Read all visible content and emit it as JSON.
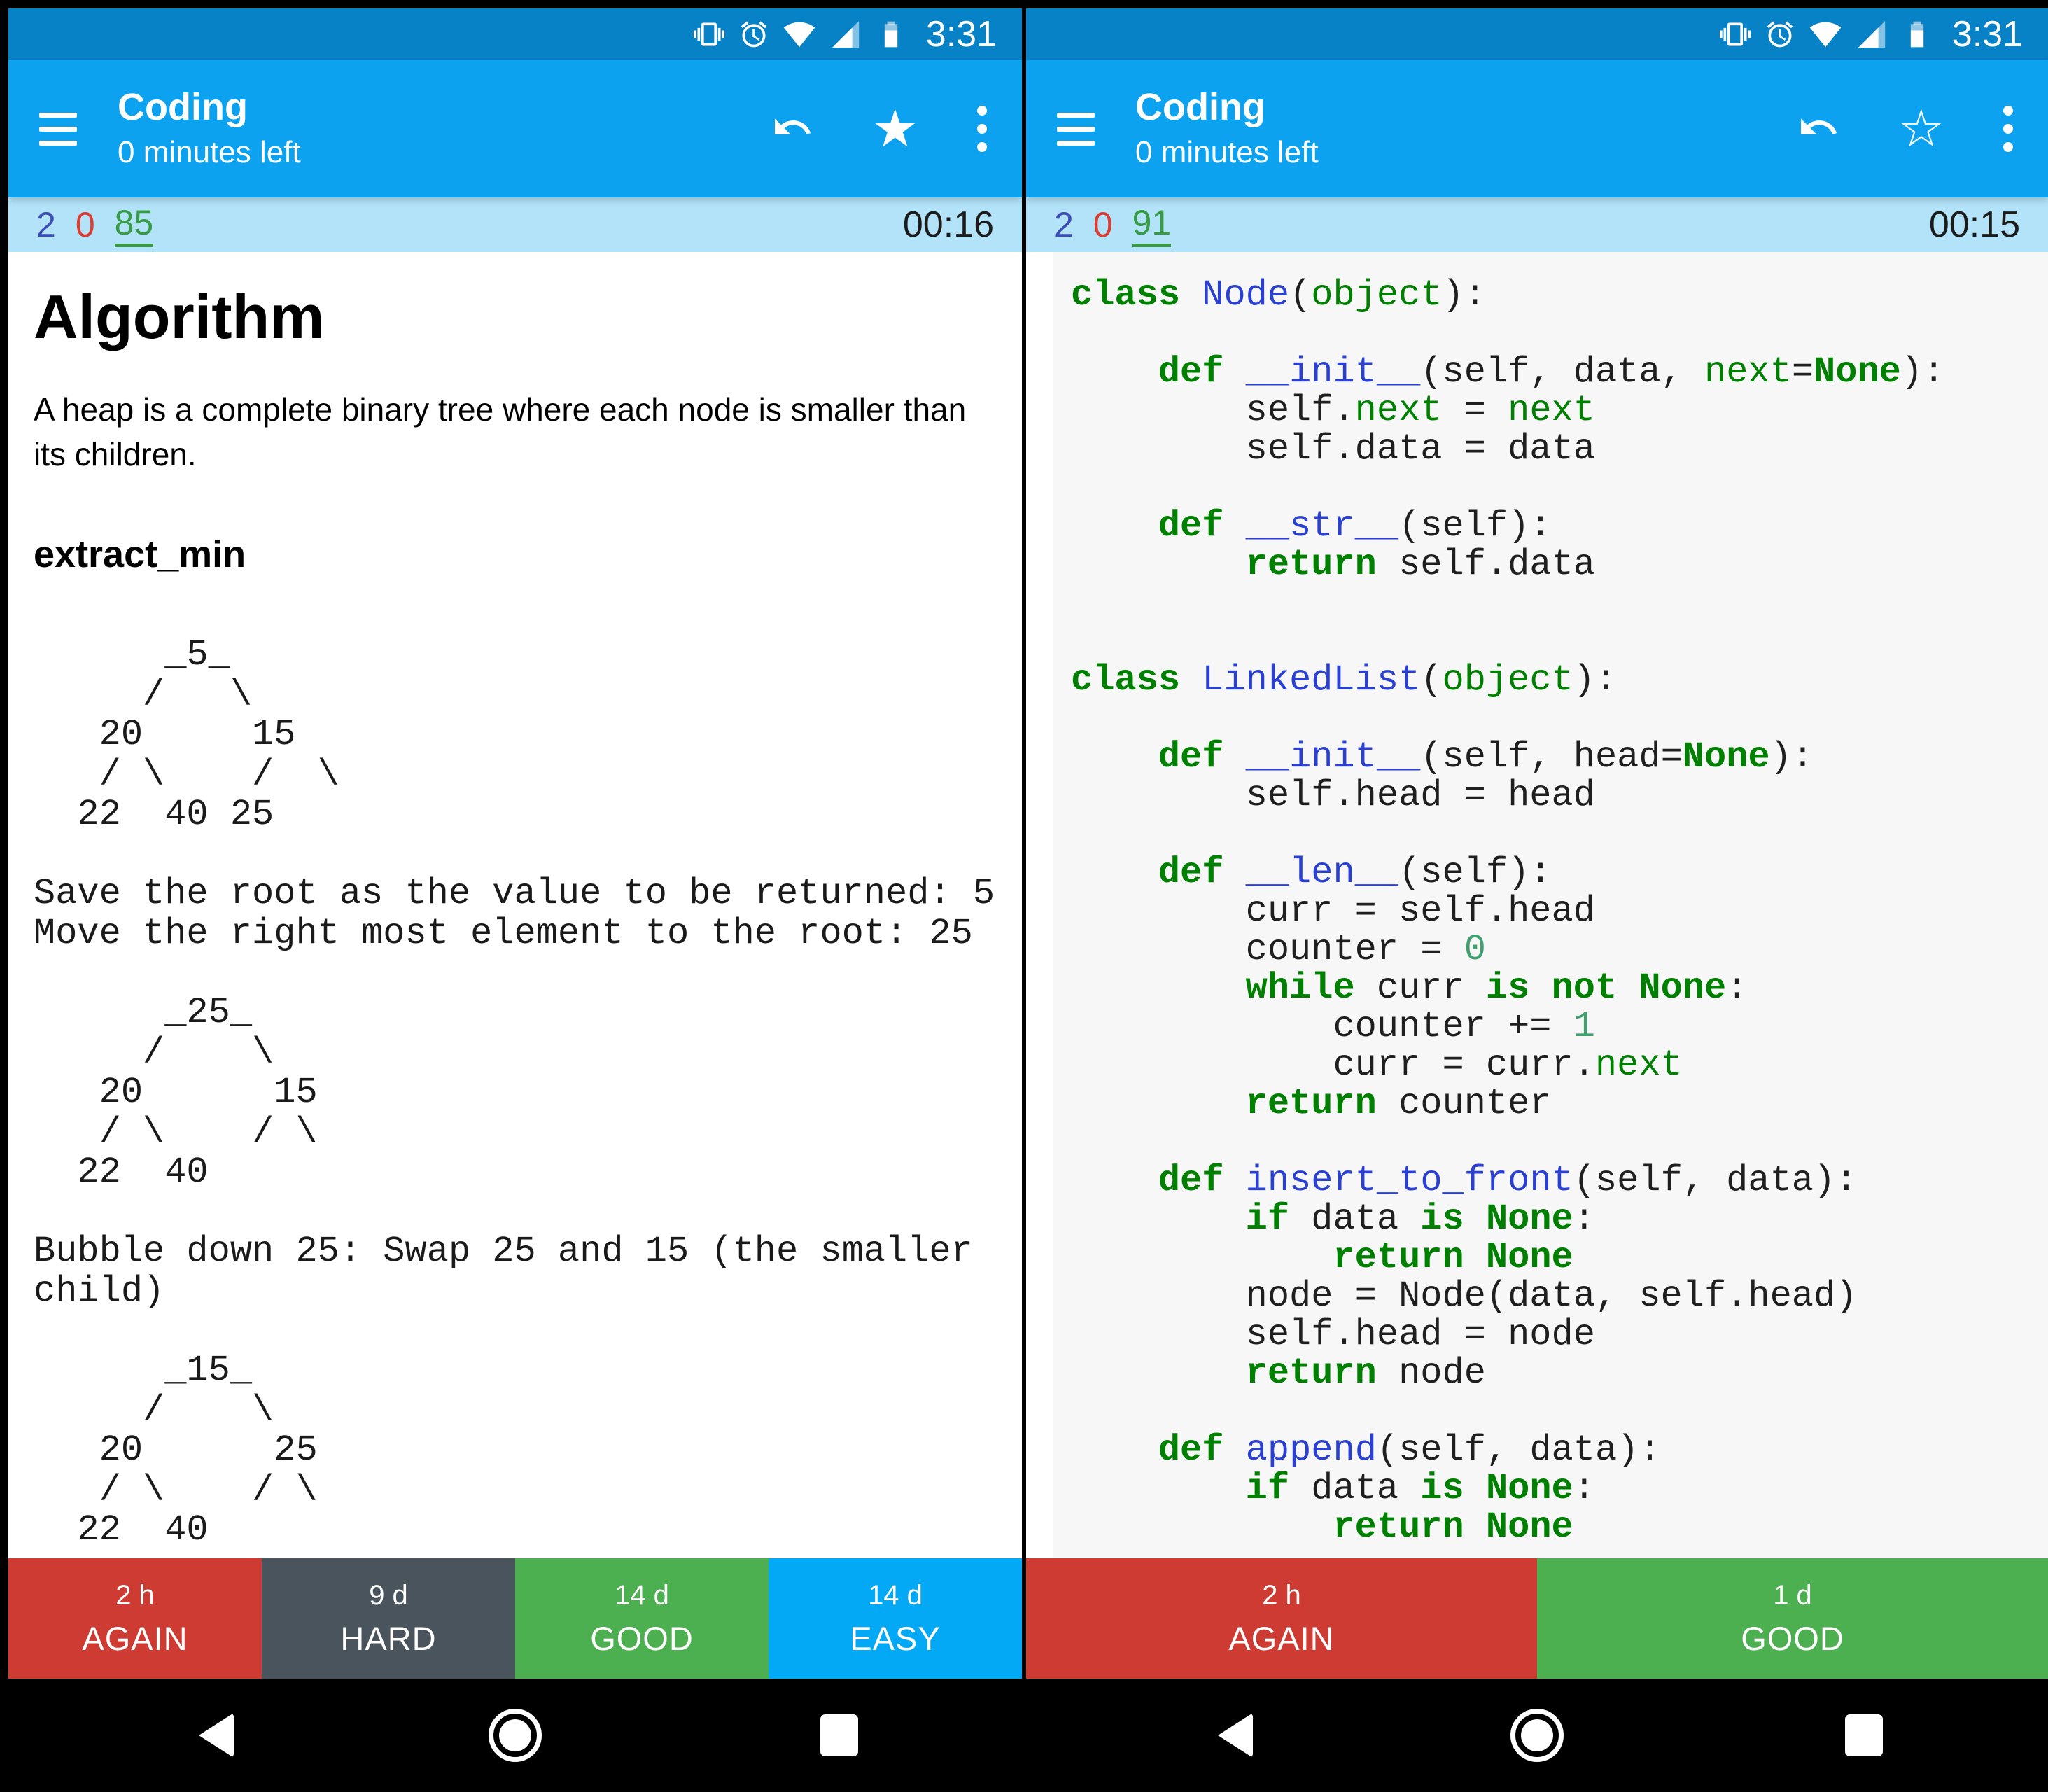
{
  "shared": {
    "status": {
      "time": "3:31",
      "icons": [
        "vibrate",
        "alarm",
        "wifi",
        "cell-signal",
        "battery"
      ]
    },
    "appbar": {
      "title": "Coding",
      "subtitle": "0 minutes left"
    },
    "colors": {
      "status_bar": "#0882c6",
      "app_bar": "#0da2ef",
      "counts_bar": "#b3e3f8",
      "again_red": "#cd3b32",
      "hard_gray": "#49545c",
      "good_green": "#4caf50",
      "easy_blue": "#03a9f4",
      "count_new": "#3c4eb5",
      "count_learn": "#dc3c31",
      "count_due": "#379a44",
      "code_keyword": "#008000",
      "code_name": "#2940d3",
      "code_builtin": "#008000",
      "code_number": "#40a070"
    }
  },
  "left": {
    "counts": {
      "new": "2",
      "learn": "0",
      "due": "85"
    },
    "timer": "00:16",
    "star_glyph": "★",
    "card": {
      "heading": "Algorithm",
      "paragraph": "A heap is a complete binary tree where each node is smaller than its children.",
      "subheading": "extract_min",
      "blocks": [
        {
          "name": "heap-tree-1",
          "lines": [
            "      _5_",
            "     /   \\",
            "   20     15",
            "   / \\    /  \\",
            "  22  40 25"
          ]
        },
        {
          "name": "step-note-1",
          "lines": [
            "Save the root as the value to be returned: 5",
            "Move the right most element to the root: 25"
          ]
        },
        {
          "name": "heap-tree-2",
          "lines": [
            "      _25_",
            "     /    \\",
            "   20      15",
            "   / \\    / \\",
            "  22  40"
          ]
        },
        {
          "name": "step-note-2",
          "lines": [
            "Bubble down 25: Swap 25 and 15 (the smaller",
            "child)"
          ]
        },
        {
          "name": "heap-tree-3",
          "lines": [
            "      _15_",
            "     /    \\",
            "   20      25",
            "   / \\    / \\",
            "  22  40"
          ]
        }
      ]
    },
    "buttons": [
      {
        "time": "2 h",
        "label": "AGAIN",
        "color": "#cd3b32"
      },
      {
        "time": "9 d",
        "label": "HARD",
        "color": "#49545c"
      },
      {
        "time": "14 d",
        "label": "GOOD",
        "color": "#4caf50"
      },
      {
        "time": "14 d",
        "label": "EASY",
        "color": "#03a9f4"
      }
    ]
  },
  "right": {
    "counts": {
      "new": "2",
      "learn": "0",
      "due": "91"
    },
    "timer": "00:15",
    "star_glyph": "☆",
    "code_lines": [
      [
        [
          "k",
          "class"
        ],
        [
          "p",
          " "
        ],
        [
          "n",
          "Node"
        ],
        [
          "p",
          "("
        ],
        [
          "b",
          "object"
        ],
        [
          "p",
          "):"
        ]
      ],
      [],
      [
        [
          "p",
          "    "
        ],
        [
          "k",
          "def"
        ],
        [
          "p",
          " "
        ],
        [
          "n",
          "__init__"
        ],
        [
          "p",
          "(self, data, "
        ],
        [
          "b",
          "next"
        ],
        [
          "p",
          "="
        ],
        [
          "k",
          "None"
        ],
        [
          "p",
          "):"
        ]
      ],
      [
        [
          "p",
          "        self."
        ],
        [
          "b",
          "next"
        ],
        [
          "p",
          " = "
        ],
        [
          "b",
          "next"
        ]
      ],
      [
        [
          "p",
          "        self.data = data"
        ]
      ],
      [],
      [
        [
          "p",
          "    "
        ],
        [
          "k",
          "def"
        ],
        [
          "p",
          " "
        ],
        [
          "n",
          "__str__"
        ],
        [
          "p",
          "(self):"
        ]
      ],
      [
        [
          "p",
          "        "
        ],
        [
          "k",
          "return"
        ],
        [
          "p",
          " self.data"
        ]
      ],
      [],
      [],
      [
        [
          "k",
          "class"
        ],
        [
          "p",
          " "
        ],
        [
          "n",
          "LinkedList"
        ],
        [
          "p",
          "("
        ],
        [
          "b",
          "object"
        ],
        [
          "p",
          "):"
        ]
      ],
      [],
      [
        [
          "p",
          "    "
        ],
        [
          "k",
          "def"
        ],
        [
          "p",
          " "
        ],
        [
          "n",
          "__init__"
        ],
        [
          "p",
          "(self, head="
        ],
        [
          "k",
          "None"
        ],
        [
          "p",
          "):"
        ]
      ],
      [
        [
          "p",
          "        self.head = head"
        ]
      ],
      [],
      [
        [
          "p",
          "    "
        ],
        [
          "k",
          "def"
        ],
        [
          "p",
          " "
        ],
        [
          "n",
          "__len__"
        ],
        [
          "p",
          "(self):"
        ]
      ],
      [
        [
          "p",
          "        curr = self.head"
        ]
      ],
      [
        [
          "p",
          "        counter = "
        ],
        [
          "m",
          "0"
        ]
      ],
      [
        [
          "p",
          "        "
        ],
        [
          "k",
          "while"
        ],
        [
          "p",
          " curr "
        ],
        [
          "k",
          "is"
        ],
        [
          "p",
          " "
        ],
        [
          "k",
          "not"
        ],
        [
          "p",
          " "
        ],
        [
          "k",
          "None"
        ],
        [
          "p",
          ":"
        ]
      ],
      [
        [
          "p",
          "            counter += "
        ],
        [
          "m",
          "1"
        ]
      ],
      [
        [
          "p",
          "            curr = curr."
        ],
        [
          "b",
          "next"
        ]
      ],
      [
        [
          "p",
          "        "
        ],
        [
          "k",
          "return"
        ],
        [
          "p",
          " counter"
        ]
      ],
      [],
      [
        [
          "p",
          "    "
        ],
        [
          "k",
          "def"
        ],
        [
          "p",
          " "
        ],
        [
          "n",
          "insert_to_front"
        ],
        [
          "p",
          "(self, data):"
        ]
      ],
      [
        [
          "p",
          "        "
        ],
        [
          "k",
          "if"
        ],
        [
          "p",
          " data "
        ],
        [
          "k",
          "is"
        ],
        [
          "p",
          " "
        ],
        [
          "k",
          "None"
        ],
        [
          "p",
          ":"
        ]
      ],
      [
        [
          "p",
          "            "
        ],
        [
          "k",
          "return"
        ],
        [
          "p",
          " "
        ],
        [
          "k",
          "None"
        ]
      ],
      [
        [
          "p",
          "        node = Node(data, self.head)"
        ]
      ],
      [
        [
          "p",
          "        self.head = node"
        ]
      ],
      [
        [
          "p",
          "        "
        ],
        [
          "k",
          "return"
        ],
        [
          "p",
          " node"
        ]
      ],
      [],
      [
        [
          "p",
          "    "
        ],
        [
          "k",
          "def"
        ],
        [
          "p",
          " "
        ],
        [
          "n",
          "append"
        ],
        [
          "p",
          "(self, data):"
        ]
      ],
      [
        [
          "p",
          "        "
        ],
        [
          "k",
          "if"
        ],
        [
          "p",
          " data "
        ],
        [
          "k",
          "is"
        ],
        [
          "p",
          " "
        ],
        [
          "k",
          "None"
        ],
        [
          "p",
          ":"
        ]
      ],
      [
        [
          "p",
          "            "
        ],
        [
          "k",
          "return"
        ],
        [
          "p",
          " "
        ],
        [
          "k",
          "None"
        ]
      ]
    ],
    "buttons": [
      {
        "time": "2 h",
        "label": "AGAIN",
        "color": "#cd3b32"
      },
      {
        "time": "1 d",
        "label": "GOOD",
        "color": "#4caf50"
      }
    ]
  }
}
